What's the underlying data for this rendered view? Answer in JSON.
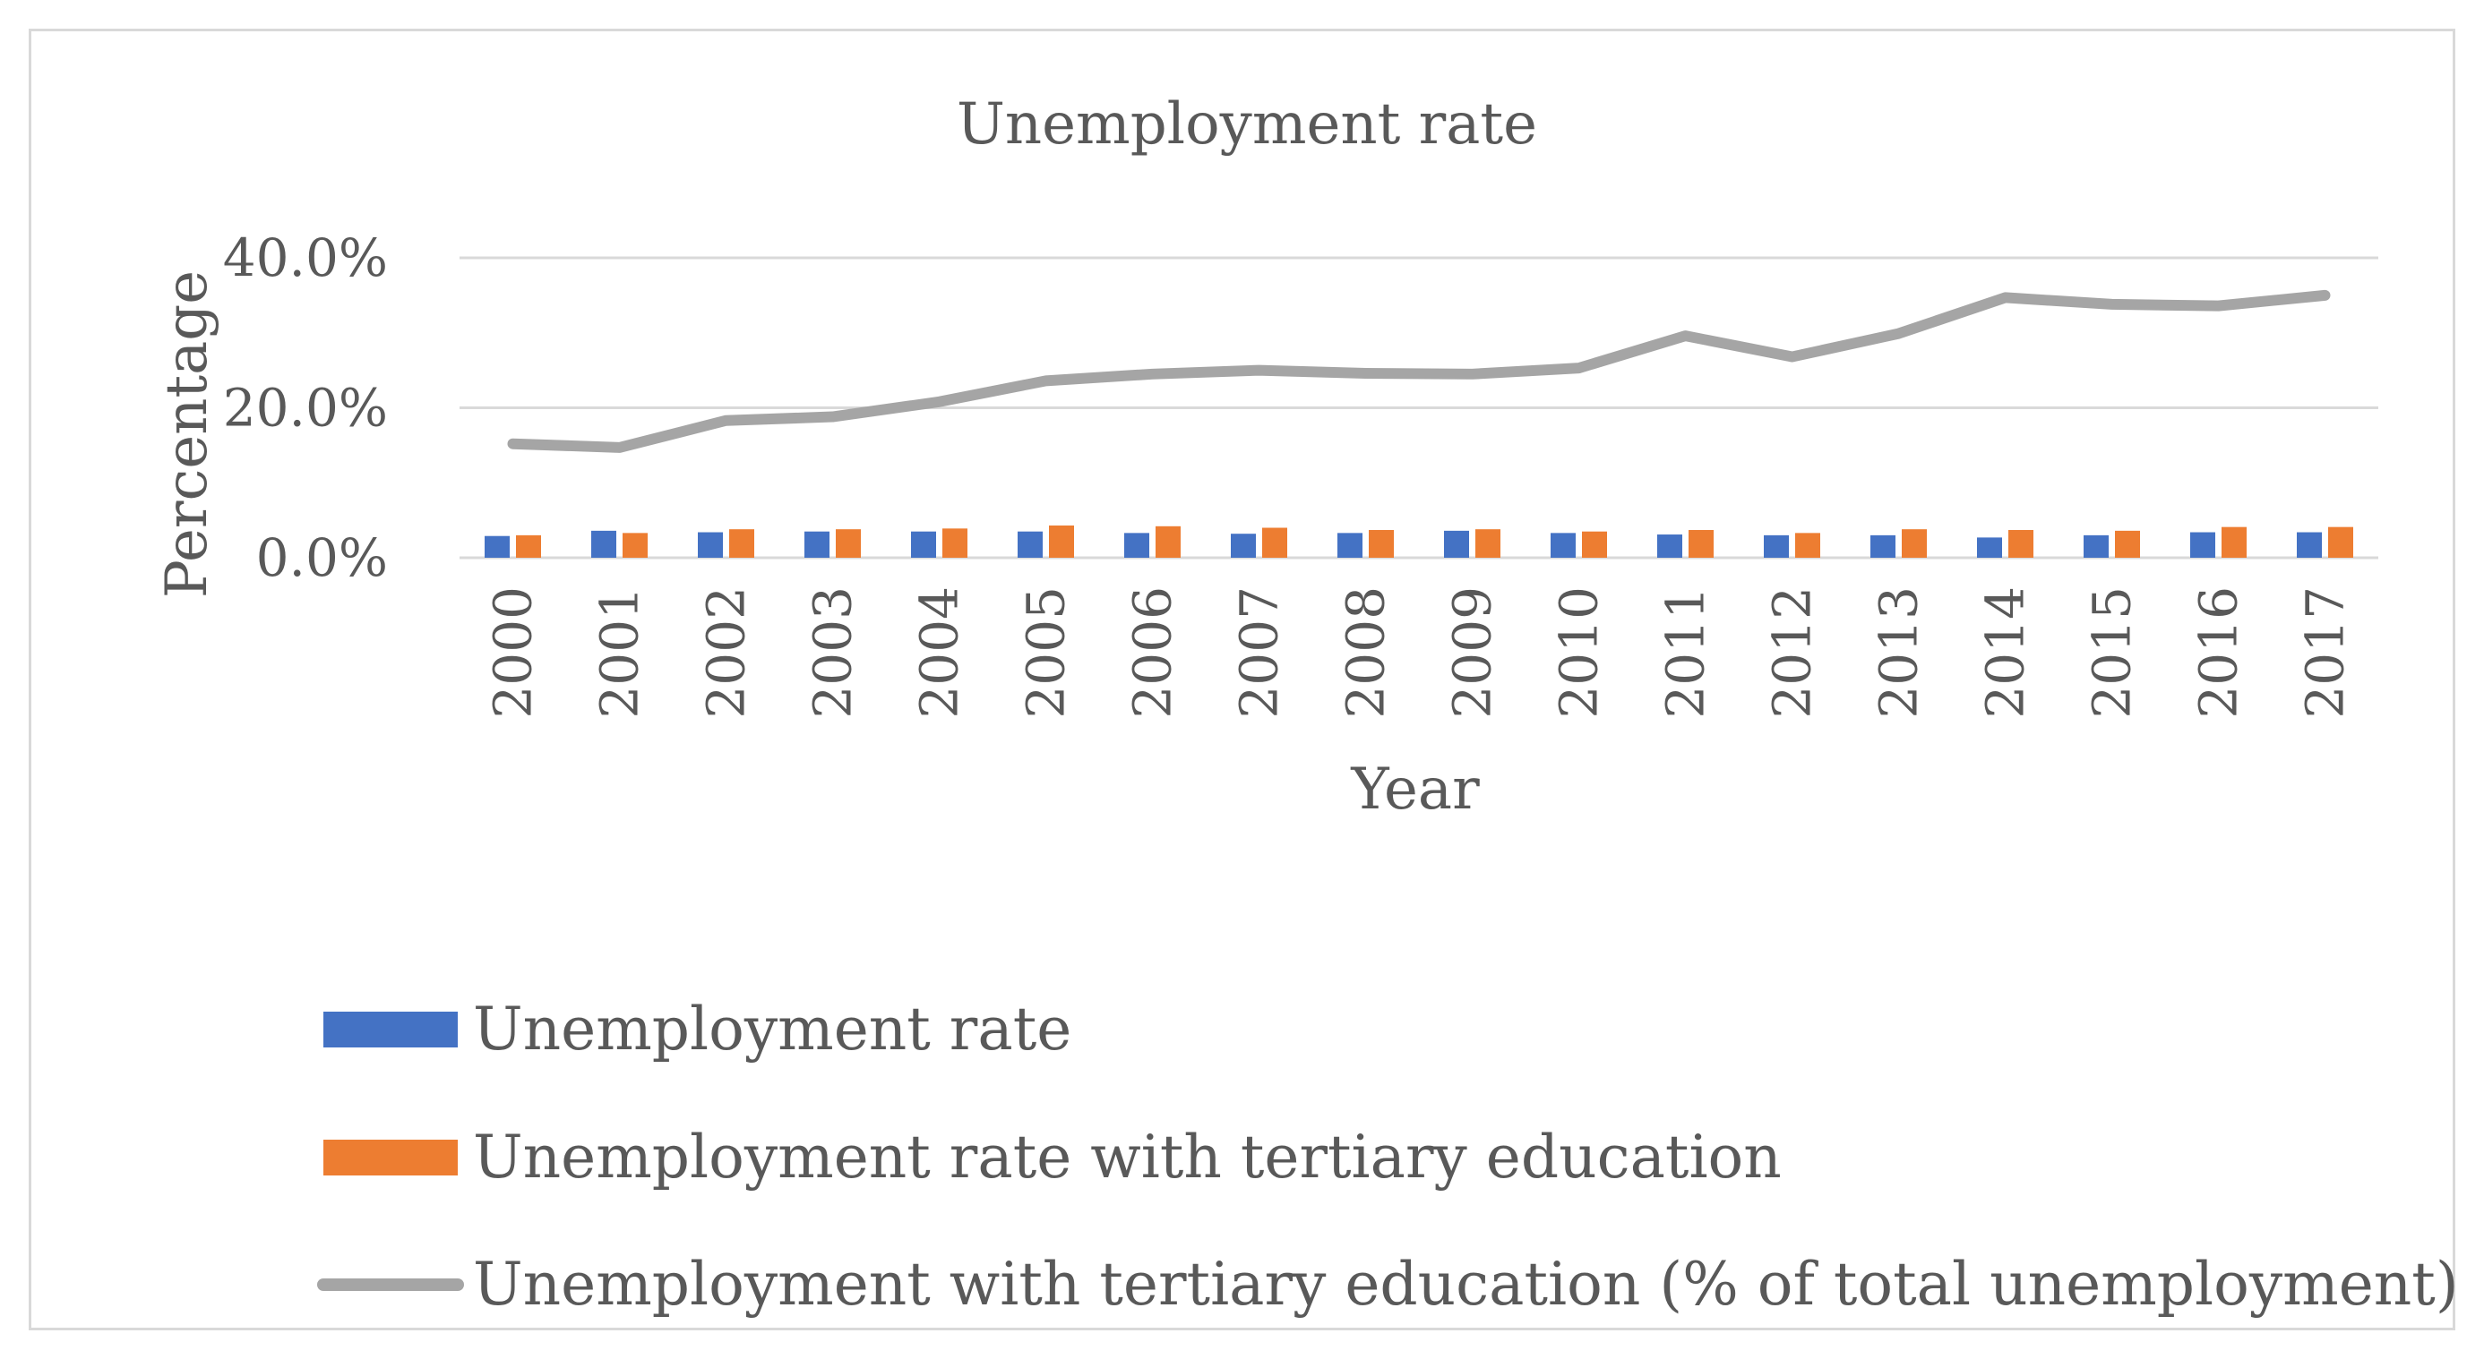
{
  "chart_data": {
    "type": "bar",
    "title": "Unemployment rate",
    "xlabel": "Year",
    "ylabel": "Percentage",
    "categories": [
      "2000",
      "2001",
      "2002",
      "2003",
      "2004",
      "2005",
      "2006",
      "2007",
      "2008",
      "2009",
      "2010",
      "2011",
      "2012",
      "2013",
      "2014",
      "2015",
      "2016",
      "2017"
    ],
    "y_ticks": [
      "0.0%",
      "20.0%",
      "40.0%"
    ],
    "ylim": [
      0,
      40
    ],
    "grid": true,
    "legend_position": "bottom",
    "series": [
      {
        "name": "Unemployment rate",
        "kind": "bar",
        "color": "#4472c4",
        "values": [
          2.9,
          3.6,
          3.4,
          3.5,
          3.5,
          3.5,
          3.3,
          3.2,
          3.3,
          3.6,
          3.3,
          3.1,
          3.0,
          3.0,
          2.7,
          3.0,
          3.4,
          3.4
        ]
      },
      {
        "name": "Unemployment rate with tertiary education",
        "kind": "bar",
        "color": "#ed7d31",
        "values": [
          3.0,
          3.3,
          3.8,
          3.8,
          3.9,
          4.3,
          4.2,
          4.0,
          3.7,
          3.8,
          3.5,
          3.7,
          3.3,
          3.8,
          3.7,
          3.6,
          4.1,
          4.1
        ]
      },
      {
        "name": "Unemployment with tertiary education (% of total unemployment)",
        "kind": "line",
        "color": "#a5a5a5",
        "values": [
          15.2,
          14.7,
          18.3,
          18.8,
          20.8,
          23.6,
          24.5,
          25.0,
          24.6,
          24.5,
          25.3,
          29.6,
          26.8,
          29.9,
          34.7,
          33.8,
          33.6,
          35.0
        ]
      }
    ]
  }
}
